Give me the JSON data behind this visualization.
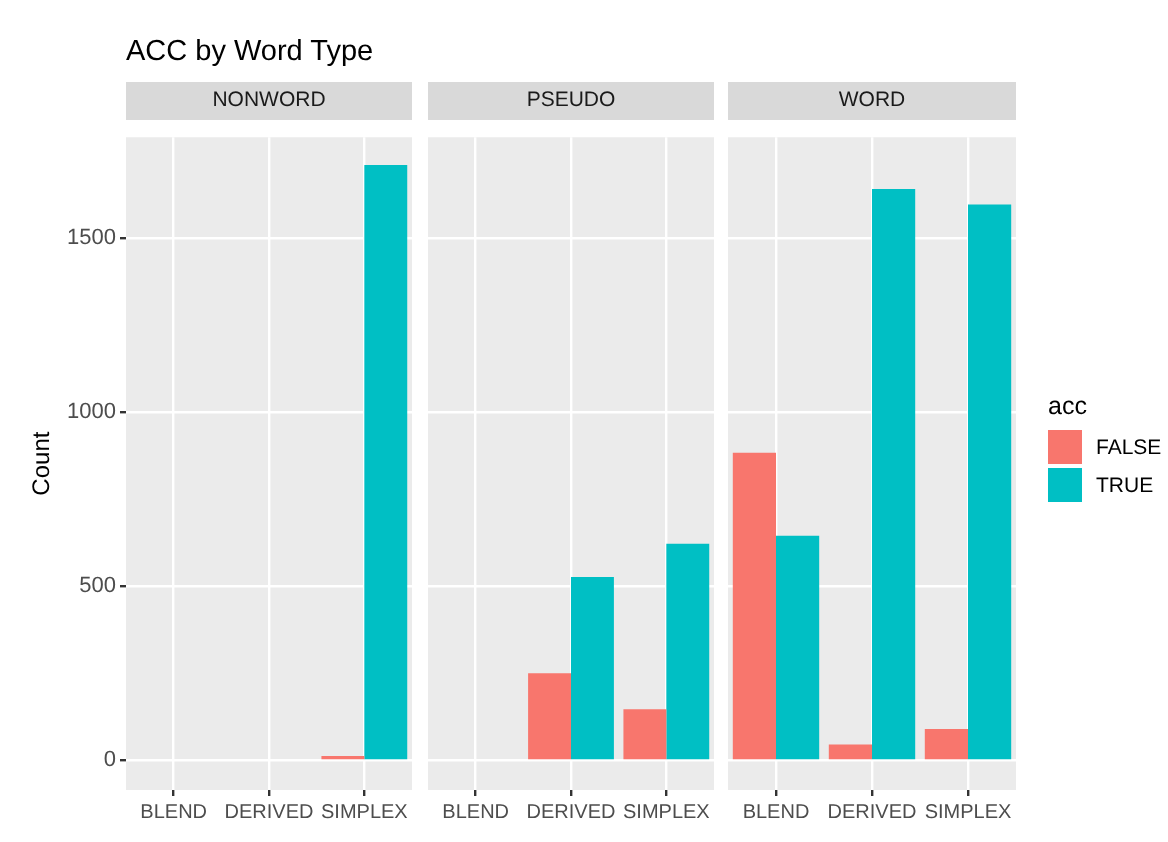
{
  "chart_data": [
    {
      "type": "bar",
      "title": "ACC by Word Type",
      "subtitle": "NONWORD",
      "ylabel": "Count",
      "categories": [
        "BLEND",
        "DERIVED",
        "SIMPLEX"
      ],
      "series": [
        {
          "color": "#f8766d",
          "values": [
            null,
            null,
            13
          ]
        },
        {
          "color": "#00bfc4",
          "values": [
            null,
            null,
            1710
          ]
        }
      ],
      "ylim": [
        -85,
        1790
      ],
      "yticks": [
        0,
        500,
        1000,
        1500
      ],
      "grid": true,
      "legend": false
    },
    {
      "type": "bar",
      "subtitle": "PSEUDO",
      "categories": [
        "BLEND",
        "DERIVED",
        "SIMPLEX"
      ],
      "series": [
        {
          "color": "#f8766d",
          "values": [
            null,
            250,
            147
          ]
        },
        {
          "color": "#00bfc4",
          "values": [
            null,
            527,
            622
          ]
        }
      ],
      "ylim": [
        -85,
        1790
      ],
      "yticks": [
        0,
        500,
        1000,
        1500
      ],
      "grid": true,
      "tick_labels": "x",
      "legend": false
    },
    {
      "type": "bar",
      "subtitle": "WORD",
      "legend_title": "acc",
      "categories": [
        "BLEND",
        "DERIVED",
        "SIMPLEX"
      ],
      "series": [
        {
          "name": "FALSE",
          "color": "#f8766d",
          "values": [
            884,
            46,
            90
          ]
        },
        {
          "name": "TRUE",
          "color": "#00bfc4",
          "values": [
            645,
            1641,
            1597
          ]
        }
      ],
      "ylim": [
        -85,
        1790
      ],
      "yticks": [
        0,
        500,
        1000,
        1500
      ],
      "grid": true,
      "tick_labels": "x",
      "legend": "right"
    }
  ]
}
